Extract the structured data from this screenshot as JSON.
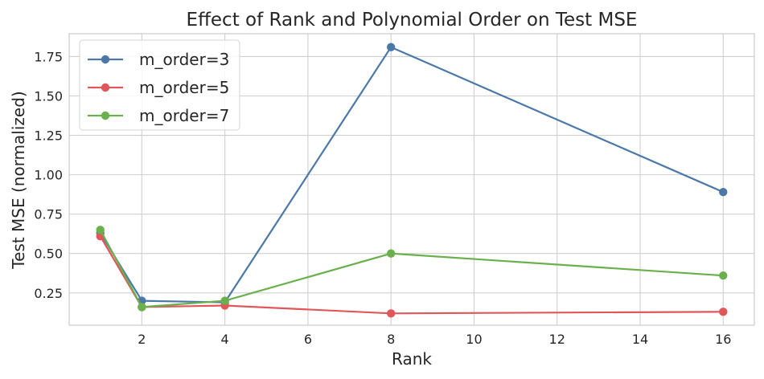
{
  "chart_data": {
    "type": "line",
    "title": "Effect of Rank and Polynomial Order on Test MSE",
    "xlabel": "Rank",
    "ylabel": "Test MSE (normalized)",
    "x": [
      1,
      2,
      4,
      8,
      16
    ],
    "xlim": [
      0.25,
      16.75
    ],
    "ylim": [
      0.045,
      1.895
    ],
    "xticks": [
      2,
      4,
      6,
      8,
      10,
      12,
      14,
      16
    ],
    "yticks": [
      0.25,
      0.5,
      0.75,
      1.0,
      1.25,
      1.5,
      1.75
    ],
    "xtick_labels": [
      "2",
      "4",
      "6",
      "8",
      "10",
      "12",
      "14",
      "16"
    ],
    "ytick_labels": [
      "0.25",
      "0.50",
      "0.75",
      "1.00",
      "1.25",
      "1.50",
      "1.75"
    ],
    "grid": true,
    "legend_position": "top-left",
    "series": [
      {
        "name": "m_order=3",
        "color": "#4c78a8",
        "values": [
          0.63,
          0.2,
          0.19,
          1.81,
          0.89
        ]
      },
      {
        "name": "m_order=5",
        "color": "#e15759",
        "values": [
          0.61,
          0.16,
          0.17,
          0.12,
          0.13
        ]
      },
      {
        "name": "m_order=7",
        "color": "#6ab04c",
        "values": [
          0.65,
          0.16,
          0.2,
          0.5,
          0.36
        ]
      }
    ]
  }
}
